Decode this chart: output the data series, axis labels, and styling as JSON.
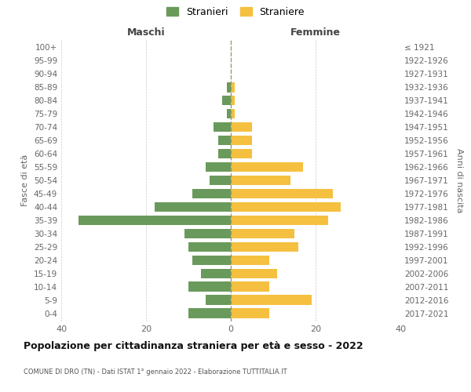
{
  "age_groups": [
    "100+",
    "95-99",
    "90-94",
    "85-89",
    "80-84",
    "75-79",
    "70-74",
    "65-69",
    "60-64",
    "55-59",
    "50-54",
    "45-49",
    "40-44",
    "35-39",
    "30-34",
    "25-29",
    "20-24",
    "15-19",
    "10-14",
    "5-9",
    "0-4"
  ],
  "birth_years": [
    "≤ 1921",
    "1922-1926",
    "1927-1931",
    "1932-1936",
    "1937-1941",
    "1942-1946",
    "1947-1951",
    "1952-1956",
    "1957-1961",
    "1962-1966",
    "1967-1971",
    "1972-1976",
    "1977-1981",
    "1982-1986",
    "1987-1991",
    "1992-1996",
    "1997-2001",
    "2002-2006",
    "2007-2011",
    "2012-2016",
    "2017-2021"
  ],
  "maschi": [
    0,
    0,
    0,
    1,
    2,
    1,
    4,
    3,
    3,
    6,
    5,
    9,
    18,
    36,
    11,
    10,
    9,
    7,
    10,
    6,
    10
  ],
  "femmine": [
    0,
    0,
    0,
    1,
    1,
    1,
    5,
    5,
    5,
    17,
    14,
    24,
    26,
    23,
    15,
    16,
    9,
    11,
    9,
    19,
    9
  ],
  "maschi_color": "#6a9a5b",
  "femmine_color": "#f5c040",
  "title": "Popolazione per cittadinanza straniera per età e sesso - 2022",
  "subtitle": "COMUNE DI DRO (TN) - Dati ISTAT 1° gennaio 2022 - Elaborazione TUTTITALIA.IT",
  "xlabel_left": "Maschi",
  "xlabel_right": "Femmine",
  "ylabel_left": "Fasce di età",
  "ylabel_right": "Anni di nascita",
  "legend_maschi": "Stranieri",
  "legend_femmine": "Straniere",
  "xlim": 40,
  "background_color": "#ffffff"
}
